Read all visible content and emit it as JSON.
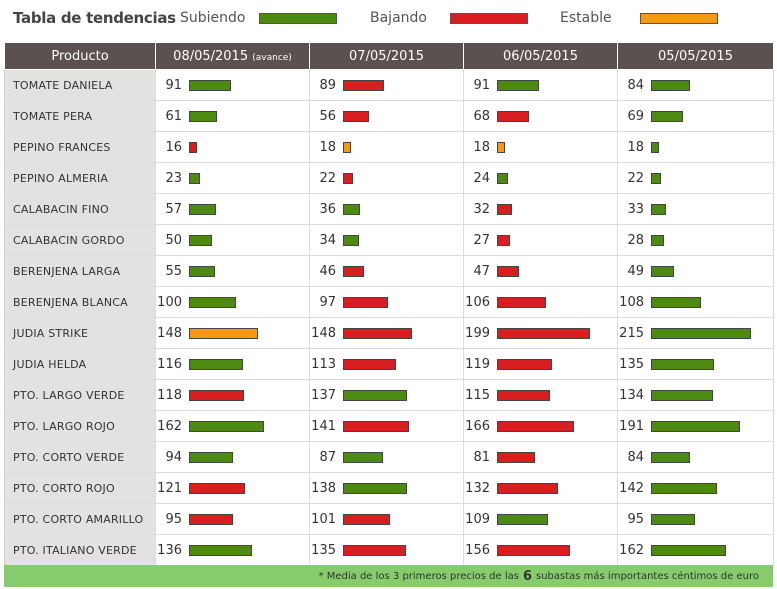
{
  "legend": {
    "title": "Tabla de tendencias",
    "items": [
      {
        "label": "Subiendo",
        "color": "#4c8a12"
      },
      {
        "label": "Bajando",
        "color": "#d81e1e"
      },
      {
        "label": "Estable",
        "color": "#f59a10"
      }
    ]
  },
  "table": {
    "product_header": "Producto",
    "dates": [
      "08/05/2015",
      "07/05/2015",
      "06/05/2015",
      "05/05/2015"
    ],
    "first_date_suffix": "(avance)"
  },
  "colors": {
    "up": "#4c8a12",
    "down": "#d81e1e",
    "stable": "#f59a10"
  },
  "chart_data": {
    "type": "table",
    "title": "Tabla de tendencias",
    "columns": [
      "08/05/2015",
      "07/05/2015",
      "06/05/2015",
      "05/05/2015"
    ],
    "max_value": 215,
    "rows": [
      {
        "product": "TOMATE DANIELA",
        "values": [
          91,
          89,
          91,
          84
        ],
        "trend": [
          "up",
          "down",
          "up",
          "up"
        ]
      },
      {
        "product": "TOMATE PERA",
        "values": [
          61,
          56,
          68,
          69
        ],
        "trend": [
          "up",
          "down",
          "down",
          "up"
        ]
      },
      {
        "product": "PEPINO FRANCES",
        "values": [
          16,
          18,
          18,
          18
        ],
        "trend": [
          "down",
          "stable",
          "stable",
          "up"
        ]
      },
      {
        "product": "PEPINO ALMERIA",
        "values": [
          23,
          22,
          24,
          22
        ],
        "trend": [
          "up",
          "down",
          "up",
          "up"
        ]
      },
      {
        "product": "CALABACIN FINO",
        "values": [
          57,
          36,
          32,
          33
        ],
        "trend": [
          "up",
          "up",
          "down",
          "up"
        ]
      },
      {
        "product": "CALABACIN GORDO",
        "values": [
          50,
          34,
          27,
          28
        ],
        "trend": [
          "up",
          "up",
          "down",
          "up"
        ]
      },
      {
        "product": "BERENJENA LARGA",
        "values": [
          55,
          46,
          47,
          49
        ],
        "trend": [
          "up",
          "down",
          "down",
          "up"
        ]
      },
      {
        "product": "BERENJENA BLANCA",
        "values": [
          100,
          97,
          106,
          108
        ],
        "trend": [
          "up",
          "down",
          "down",
          "up"
        ]
      },
      {
        "product": "JUDIA STRIKE",
        "values": [
          148,
          148,
          199,
          215
        ],
        "trend": [
          "stable",
          "down",
          "down",
          "up"
        ]
      },
      {
        "product": "JUDIA HELDA",
        "values": [
          116,
          113,
          119,
          135
        ],
        "trend": [
          "up",
          "down",
          "down",
          "up"
        ]
      },
      {
        "product": "PTO. LARGO VERDE",
        "values": [
          118,
          137,
          115,
          134
        ],
        "trend": [
          "down",
          "up",
          "down",
          "up"
        ]
      },
      {
        "product": "PTO. LARGO ROJO",
        "values": [
          162,
          141,
          166,
          191
        ],
        "trend": [
          "up",
          "down",
          "down",
          "up"
        ]
      },
      {
        "product": "PTO. CORTO VERDE",
        "values": [
          94,
          87,
          81,
          84
        ],
        "trend": [
          "up",
          "up",
          "down",
          "up"
        ]
      },
      {
        "product": "PTO. CORTO ROJO",
        "values": [
          121,
          138,
          132,
          142
        ],
        "trend": [
          "down",
          "up",
          "down",
          "up"
        ]
      },
      {
        "product": "PTO. CORTO AMARILLO",
        "values": [
          95,
          101,
          109,
          95
        ],
        "trend": [
          "down",
          "down",
          "up",
          "up"
        ]
      },
      {
        "product": "PTO. ITALIANO VERDE",
        "values": [
          136,
          135,
          156,
          162
        ],
        "trend": [
          "up",
          "down",
          "down",
          "up"
        ]
      }
    ]
  },
  "footer": {
    "prefix": "* Media de los 3 primeros precios de las",
    "count": "6",
    "suffix": "subastas más importantes céntimos de euro"
  }
}
